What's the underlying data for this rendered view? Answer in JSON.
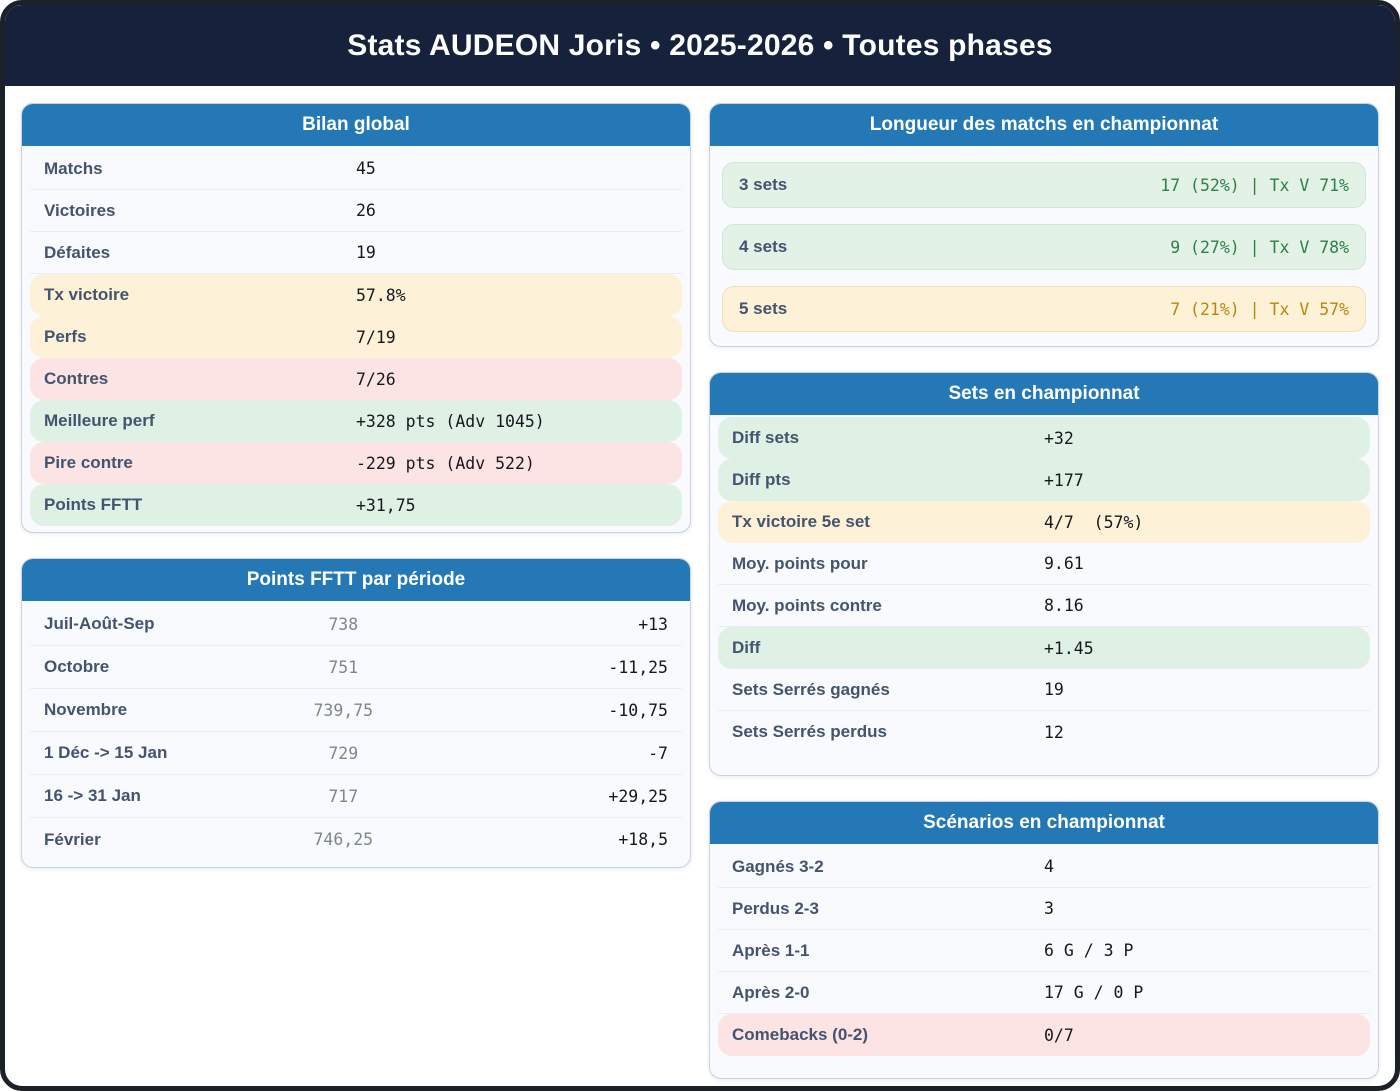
{
  "title": "Stats AUDEON Joris • 2025-2026 • Toutes phases",
  "colors": {
    "navy_header": "#16213c",
    "card_header_blue": "#2478b5",
    "green_bg": "#dff0e5",
    "cream_bg": "#fdf2d7",
    "pink_bg": "#fce4e4",
    "green_text": "#2e8049",
    "orange_text": "#b8860b",
    "label_text": "#44546e",
    "value_text": "#16181d"
  },
  "bilan": {
    "title": "Bilan global",
    "rows": [
      {
        "label": "Matchs",
        "value": "45",
        "tone": "none"
      },
      {
        "label": "Victoires",
        "value": "26",
        "tone": "none"
      },
      {
        "label": "Défaites",
        "value": "19",
        "tone": "none"
      },
      {
        "label": "Tx victoire",
        "value": "57.8%",
        "tone": "cream"
      },
      {
        "label": "Perfs",
        "value": "7/19",
        "tone": "cream"
      },
      {
        "label": "Contres",
        "value": "7/26",
        "tone": "pink"
      },
      {
        "label": "Meilleure perf",
        "value": "+328 pts (Adv 1045)",
        "tone": "green"
      },
      {
        "label": "Pire contre",
        "value": "-229 pts (Adv 522)",
        "tone": "pink"
      },
      {
        "label": "Points FFTT",
        "value": "+31,75",
        "tone": "green"
      }
    ]
  },
  "periode": {
    "title": "Points FFTT par période",
    "rows": [
      {
        "label": "Juil-Août-Sep",
        "points": "738",
        "delta": "+13"
      },
      {
        "label": "Octobre",
        "points": "751",
        "delta": "-11,25"
      },
      {
        "label": "Novembre",
        "points": "739,75",
        "delta": "-10,75"
      },
      {
        "label": "1 Déc -> 15 Jan",
        "points": "729",
        "delta": "-7"
      },
      {
        "label": "16 -> 31 Jan",
        "points": "717",
        "delta": "+29,25"
      },
      {
        "label": "Février",
        "points": "746,25",
        "delta": "+18,5"
      }
    ]
  },
  "longueur": {
    "title": "Longueur des matchs en championnat",
    "rows": [
      {
        "label": "3 sets",
        "value": "17 (52%) | Tx V 71%",
        "tone": "green"
      },
      {
        "label": "4 sets",
        "value": "9 (27%) | Tx V 78%",
        "tone": "green"
      },
      {
        "label": "5 sets",
        "value": "7 (21%) | Tx V 57%",
        "tone": "cream"
      }
    ]
  },
  "sets": {
    "title": "Sets en championnat",
    "rows": [
      {
        "label": "Diff sets",
        "value": "+32",
        "tone": "green"
      },
      {
        "label": "Diff pts",
        "value": "+177",
        "tone": "green"
      },
      {
        "label": "Tx victoire 5e set",
        "value": "4/7  (57%)",
        "tone": "cream"
      },
      {
        "label": "Moy. points pour",
        "value": "9.61",
        "tone": "none"
      },
      {
        "label": "Moy. points contre",
        "value": "8.16",
        "tone": "none"
      },
      {
        "label": "Diff",
        "value": "+1.45",
        "tone": "green"
      },
      {
        "label": "Sets Serrés gagnés",
        "value": "19",
        "tone": "none"
      },
      {
        "label": "Sets Serrés perdus",
        "value": "12",
        "tone": "none"
      }
    ]
  },
  "scenarios": {
    "title": "Scénarios en championnat",
    "rows": [
      {
        "label": "Gagnés 3-2",
        "value": "4",
        "tone": "none"
      },
      {
        "label": "Perdus 2-3",
        "value": "3",
        "tone": "none"
      },
      {
        "label": "Après 1-1",
        "value": "6 G / 3 P",
        "tone": "none"
      },
      {
        "label": "Après 2-0",
        "value": "17 G / 0 P",
        "tone": "none"
      },
      {
        "label": "Comebacks (0-2)",
        "value": "0/7",
        "tone": "pink"
      }
    ]
  }
}
